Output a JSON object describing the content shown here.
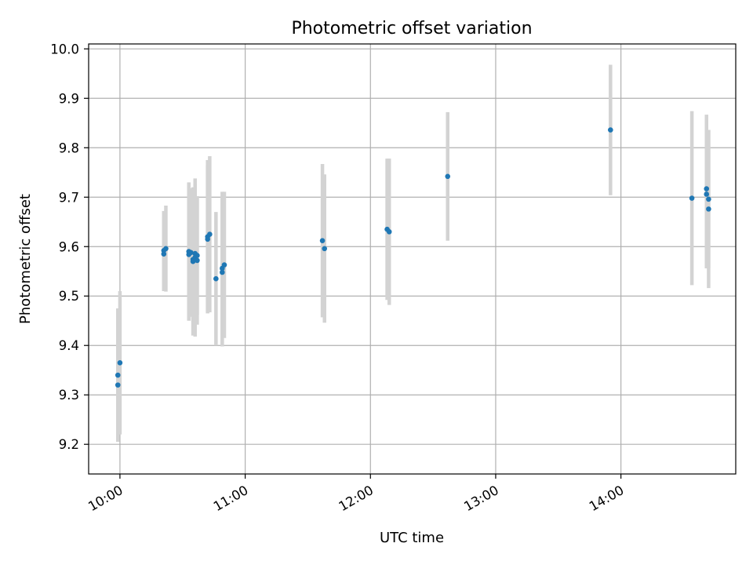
{
  "chart_data": {
    "type": "scatter",
    "title": "Photometric offset variation",
    "xlabel": "UTC time",
    "ylabel": "Photometric offset",
    "x_format": "HH:MM",
    "xlim": [
      "09:45",
      "14:55"
    ],
    "ylim": [
      9.14,
      10.01
    ],
    "x_ticks": [
      "10:00",
      "11:00",
      "12:00",
      "13:00",
      "14:00"
    ],
    "y_ticks": [
      9.2,
      9.3,
      9.4,
      9.5,
      9.6,
      9.7,
      9.8,
      9.9,
      10.0
    ],
    "grid": true,
    "colors": {
      "points": "#1f77b4",
      "errorbars": "#d3d3d3",
      "grid": "#b0b0b0"
    },
    "points": [
      {
        "x": "09:59",
        "y": 9.32,
        "err": 0.1
      },
      {
        "x": "09:59",
        "y": 9.34,
        "err": 0.135
      },
      {
        "x": "10:00",
        "y": 9.365,
        "err": 0.145
      },
      {
        "x": "10:21",
        "y": 9.585,
        "err": 0.075
      },
      {
        "x": "10:21",
        "y": 9.592,
        "err": 0.08
      },
      {
        "x": "10:22",
        "y": 9.596,
        "err": 0.087
      },
      {
        "x": "10:33",
        "y": 9.59,
        "err": 0.14
      },
      {
        "x": "10:33",
        "y": 9.584,
        "err": 0.12
      },
      {
        "x": "10:34",
        "y": 9.588,
        "err": 0.13
      },
      {
        "x": "10:35",
        "y": 9.574,
        "err": 0.125
      },
      {
        "x": "10:35",
        "y": 9.57,
        "err": 0.15
      },
      {
        "x": "10:36",
        "y": 9.578,
        "err": 0.16
      },
      {
        "x": "10:36",
        "y": 9.586,
        "err": 0.14
      },
      {
        "x": "10:37",
        "y": 9.572,
        "err": 0.13
      },
      {
        "x": "10:37",
        "y": 9.582,
        "err": 0.12
      },
      {
        "x": "10:42",
        "y": 9.615,
        "err": 0.15
      },
      {
        "x": "10:42",
        "y": 9.62,
        "err": 0.155
      },
      {
        "x": "10:43",
        "y": 9.625,
        "err": 0.158
      },
      {
        "x": "10:46",
        "y": 9.535,
        "err": 0.135
      },
      {
        "x": "10:49",
        "y": 9.548,
        "err": 0.15
      },
      {
        "x": "10:49",
        "y": 9.556,
        "err": 0.155
      },
      {
        "x": "10:50",
        "y": 9.563,
        "err": 0.148
      },
      {
        "x": "11:37",
        "y": 9.612,
        "err": 0.155
      },
      {
        "x": "11:38",
        "y": 9.596,
        "err": 0.15
      },
      {
        "x": "12:08",
        "y": 9.635,
        "err": 0.143
      },
      {
        "x": "12:09",
        "y": 9.63,
        "err": 0.148
      },
      {
        "x": "12:37",
        "y": 9.742,
        "err": 0.13
      },
      {
        "x": "13:55",
        "y": 9.836,
        "err": 0.132
      },
      {
        "x": "14:34",
        "y": 9.698,
        "err": 0.176
      },
      {
        "x": "14:41",
        "y": 9.717,
        "err": 0.15
      },
      {
        "x": "14:41",
        "y": 9.706,
        "err": 0.15
      },
      {
        "x": "14:42",
        "y": 9.696,
        "err": 0.14
      },
      {
        "x": "14:42",
        "y": 9.676,
        "err": 0.16
      }
    ]
  }
}
